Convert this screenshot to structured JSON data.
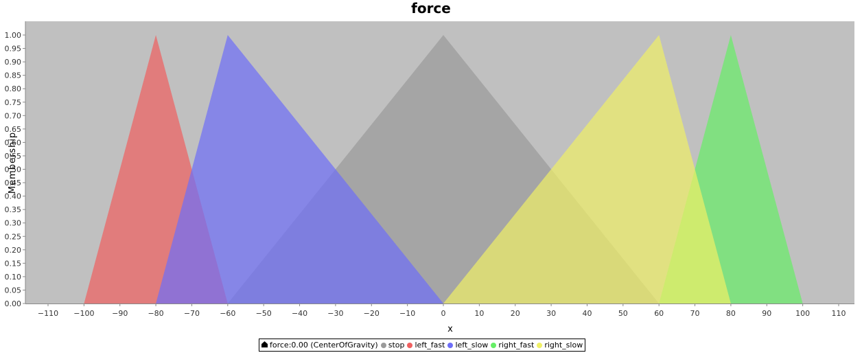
{
  "chart_data": {
    "type": "area",
    "title": "force",
    "xlabel": "x",
    "ylabel": "Membership",
    "xlim": [
      -110,
      110
    ],
    "ylim": [
      0,
      1
    ],
    "x_ticks": [
      -110,
      -100,
      -90,
      -80,
      -70,
      -60,
      -50,
      -40,
      -30,
      -20,
      -10,
      0,
      10,
      20,
      30,
      40,
      50,
      60,
      70,
      80,
      90,
      100,
      110
    ],
    "y_ticks": [
      "0.00",
      "0.05",
      "0.10",
      "0.15",
      "0.20",
      "0.25",
      "0.30",
      "0.35",
      "0.40",
      "0.45",
      "0.50",
      "0.55",
      "0.60",
      "0.65",
      "0.70",
      "0.75",
      "0.80",
      "0.85",
      "0.90",
      "0.95",
      "1.00"
    ],
    "grid": false,
    "plot_background": "#c0c0c0",
    "series": [
      {
        "name": "stop",
        "color": "#9a9a9a",
        "x": [
          -60,
          0,
          60
        ],
        "y": [
          0,
          1,
          0
        ]
      },
      {
        "name": "left_fast",
        "color": "#f06060",
        "x": [
          -100,
          -80,
          -60
        ],
        "y": [
          0,
          1,
          0
        ]
      },
      {
        "name": "left_slow",
        "color": "#6e6ef8",
        "x": [
          -80,
          -60,
          0
        ],
        "y": [
          0,
          1,
          0
        ]
      },
      {
        "name": "right_fast",
        "color": "#66ee66",
        "x": [
          60,
          80,
          100
        ],
        "y": [
          0,
          1,
          0
        ]
      },
      {
        "name": "right_slow",
        "color": "#f0f066",
        "x": [
          0,
          60,
          80
        ],
        "y": [
          0,
          1,
          0
        ]
      }
    ],
    "legend": {
      "placement": "bottom-center",
      "output_label": "force:0.00 (CenterOfGravity)",
      "output_color": "#000000",
      "entries": [
        "stop",
        "left_fast",
        "left_slow",
        "right_fast",
        "right_slow"
      ]
    }
  }
}
